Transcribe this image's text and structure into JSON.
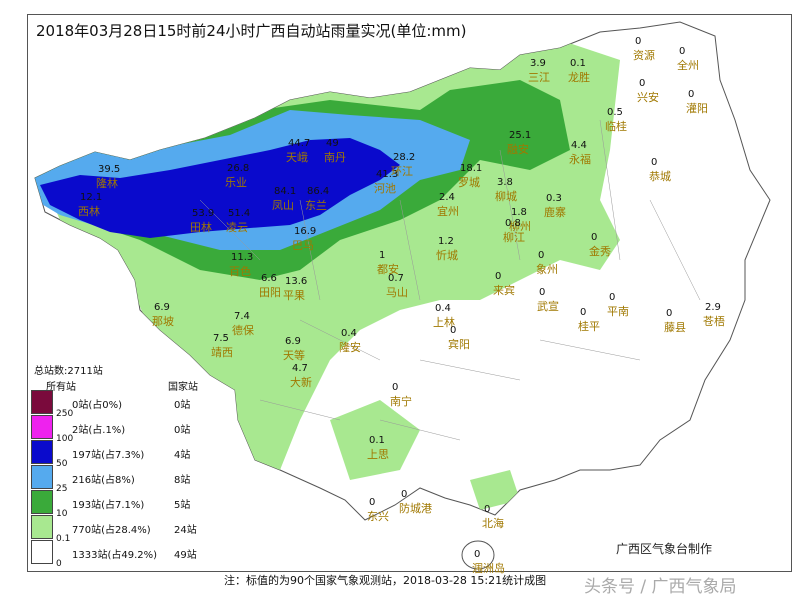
{
  "title": "2018年03月28日15时前24小时广西自动站雨量实况(单位:mm)",
  "maker": "广西区气象台制作",
  "note": "注：标值的为90个国家气象观测站，2018-03-28 15:21统计成图",
  "watermark": "头条号 / 广西气象局",
  "legend": {
    "total": "总站数:2711站",
    "col_all": "所有站",
    "col_national": "国家站",
    "rows": [
      {
        "color": "#7a0a3c",
        "all": "0站(占0%)",
        "national": "0站"
      },
      {
        "color": "#ee22ee",
        "all": "2站(占.1%)",
        "national": "0站"
      },
      {
        "color": "#0a0acc",
        "all": "197站(占7.3%)",
        "national": "4站"
      },
      {
        "color": "#55aaee",
        "all": "216站(占8%)",
        "national": "8站"
      },
      {
        "color": "#3aaa3a",
        "all": "193站(占7.1%)",
        "national": "5站"
      },
      {
        "color": "#a8e890",
        "all": "770站(占28.4%)",
        "national": "24站"
      },
      {
        "color": "#ffffff",
        "all": "1333站(占49.2%)",
        "national": "49站"
      }
    ],
    "thresholds": [
      "250",
      "100",
      "50",
      "25",
      "10",
      "0.1",
      "0"
    ]
  },
  "stations": [
    {
      "name": "资源",
      "value": "0"
    },
    {
      "name": "全州",
      "value": "0"
    },
    {
      "name": "三江",
      "value": "3.9"
    },
    {
      "name": "龙胜",
      "value": "0.1"
    },
    {
      "name": "兴安",
      "value": "0"
    },
    {
      "name": "灌阳",
      "value": "0"
    },
    {
      "name": "临桂",
      "value": "0.5"
    },
    {
      "name": "融安",
      "value": "25.1"
    },
    {
      "name": "永福",
      "value": "4.4"
    },
    {
      "name": "恭城",
      "value": "0"
    },
    {
      "name": "天峨",
      "value": "44.7"
    },
    {
      "name": "南丹",
      "value": "49"
    },
    {
      "name": "乐业",
      "value": "26.8"
    },
    {
      "name": "凤山",
      "value": "84.1"
    },
    {
      "name": "东兰",
      "value": "86.4"
    },
    {
      "name": "河池",
      "value": "41.3"
    },
    {
      "name": "环江",
      "value": "28.2"
    },
    {
      "name": "罗城",
      "value": "18.1"
    },
    {
      "name": "隆林",
      "value": "39.5"
    },
    {
      "name": "西林",
      "value": "12.1"
    },
    {
      "name": "田林",
      "value": "53.9"
    },
    {
      "name": "凌云",
      "value": "51.4"
    },
    {
      "name": "宜州",
      "value": "2.4"
    },
    {
      "name": "柳城",
      "value": "3.8"
    },
    {
      "name": "鹿寨",
      "value": "0.3"
    },
    {
      "name": "柳州",
      "value": "1.8"
    },
    {
      "name": "柳江",
      "value": "0.8"
    },
    {
      "name": "巴马",
      "value": "16.9"
    },
    {
      "name": "百色",
      "value": "11.3"
    },
    {
      "name": "田阳",
      "value": "6.6"
    },
    {
      "name": "平果",
      "value": "13.6"
    },
    {
      "name": "忻城",
      "value": "1.2"
    },
    {
      "name": "都安",
      "value": "1"
    },
    {
      "name": "马山",
      "value": "0.7"
    },
    {
      "name": "那坡",
      "value": "6.9"
    },
    {
      "name": "德保",
      "value": "7.4"
    },
    {
      "name": "靖西",
      "value": "7.5"
    },
    {
      "name": "天等",
      "value": "6.9"
    },
    {
      "name": "隆安",
      "value": "0.4"
    },
    {
      "name": "平南",
      "value": "0"
    },
    {
      "name": "桂平",
      "value": "0"
    },
    {
      "name": "藤县",
      "value": "0"
    },
    {
      "name": "苍梧",
      "value": "2.9"
    },
    {
      "name": "大新",
      "value": "4.7"
    },
    {
      "name": "上林",
      "value": "0.4"
    },
    {
      "name": "宾阳",
      "value": "0"
    },
    {
      "name": "来宾",
      "value": "0"
    },
    {
      "name": "武宣",
      "value": "0"
    },
    {
      "name": "象州",
      "value": "0"
    },
    {
      "name": "金秀",
      "value": "0"
    },
    {
      "name": "南宁",
      "value": "0"
    },
    {
      "name": "上思",
      "value": "0.1"
    },
    {
      "name": "防城港",
      "value": "0"
    },
    {
      "name": "东兴",
      "value": "0"
    },
    {
      "name": "北海",
      "value": "0"
    },
    {
      "name": "涠洲岛",
      "value": "0"
    }
  ]
}
